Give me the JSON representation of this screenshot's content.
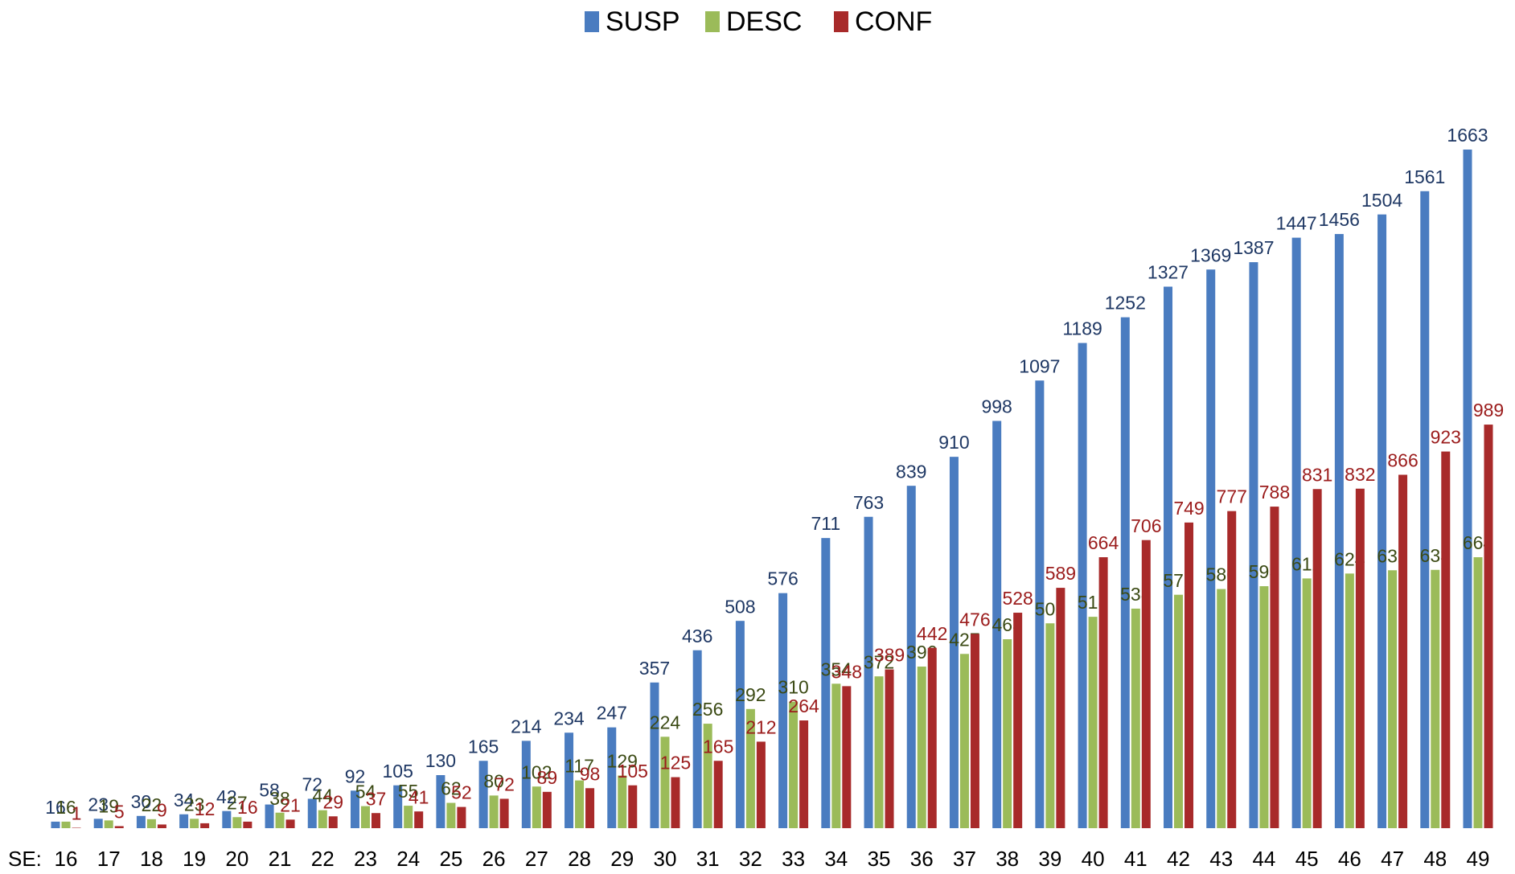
{
  "chart_data": {
    "type": "bar",
    "x_label": "SE:",
    "categories": [
      "16",
      "17",
      "18",
      "19",
      "20",
      "21",
      "22",
      "23",
      "24",
      "25",
      "26",
      "27",
      "28",
      "29",
      "30",
      "31",
      "32",
      "33",
      "34",
      "35",
      "36",
      "37",
      "38",
      "39",
      "40",
      "41",
      "42",
      "43",
      "44",
      "45",
      "46",
      "47",
      "48",
      "49"
    ],
    "series": [
      {
        "name": "SUSP",
        "color": "#4a7cc0",
        "label_color": "#1f3864",
        "values": [
          16,
          23,
          30,
          34,
          42,
          58,
          72,
          92,
          105,
          130,
          165,
          214,
          234,
          247,
          357,
          436,
          508,
          576,
          711,
          763,
          839,
          910,
          998,
          1097,
          1189,
          1252,
          1327,
          1369,
          1387,
          1447,
          1456,
          1504,
          1561,
          1663
        ]
      },
      {
        "name": "DESC",
        "color": "#9bbb59",
        "label_color": "#3b4a14",
        "values": [
          16,
          19,
          22,
          23,
          27,
          38,
          44,
          54,
          55,
          62,
          80,
          102,
          117,
          129,
          224,
          256,
          292,
          310,
          354,
          372,
          396,
          427,
          463,
          502,
          518,
          538,
          572,
          586,
          593,
          612,
          624,
          632,
          633,
          664
        ]
      },
      {
        "name": "CONF",
        "color": "#a82a2a",
        "label_color": "#9b1c1c",
        "values": [
          1,
          5,
          9,
          12,
          16,
          21,
          29,
          37,
          41,
          52,
          72,
          89,
          98,
          105,
          125,
          165,
          212,
          264,
          348,
          389,
          442,
          476,
          528,
          589,
          664,
          706,
          749,
          777,
          788,
          831,
          832,
          866,
          923,
          989
        ]
      }
    ],
    "legend": "top"
  }
}
